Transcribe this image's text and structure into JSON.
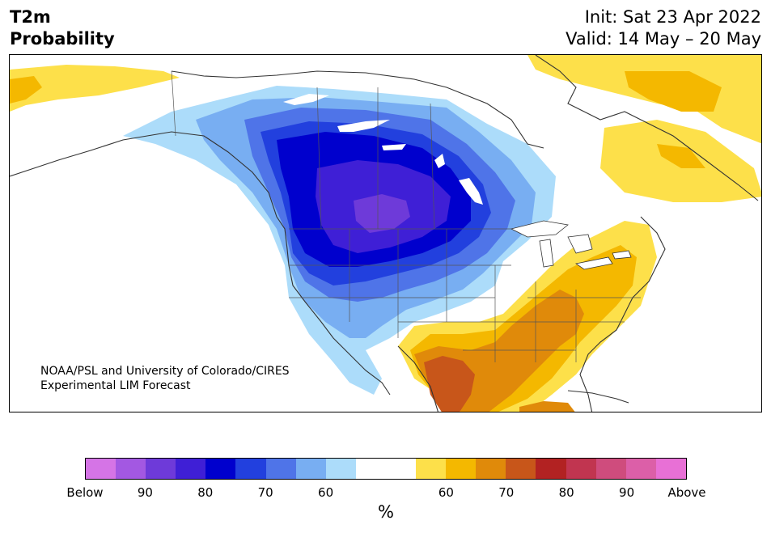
{
  "title": {
    "line1": "T2m",
    "line2": "Probability"
  },
  "forecast": {
    "init": "Init: Sat 23 Apr 2022",
    "valid": "Valid: 14 May – 20 May"
  },
  "credit": {
    "line1": "NOAA/PSL and University of Colorado/CIRES",
    "line2": "Experimental LIM Forecast"
  },
  "colorbar": {
    "title": "%",
    "colors": [
      "#d574e6",
      "#a358e2",
      "#6e3ad9",
      "#3f1fd6",
      "#0000cd",
      "#2240de",
      "#4f74e8",
      "#78aef2",
      "#acdcfa",
      "#ffffff",
      "#ffffff",
      "#fde04a",
      "#f4b800",
      "#e08a0a",
      "#c8561a",
      "#b22222",
      "#c13550",
      "#cf4c7d",
      "#dc5fa8",
      "#e870d6"
    ],
    "labels": [
      "Below",
      "90",
      "80",
      "70",
      "60",
      "60",
      "70",
      "80",
      "90",
      "Above"
    ]
  },
  "map_layers": {
    "below_60": "#acdcfa",
    "below_65": "#78aef2",
    "below_70": "#4f74e8",
    "below_75": "#2240de",
    "below_80": "#0000cd",
    "below_85": "#3f1fd6",
    "below_90": "#6e3ad9",
    "above_60": "#fde04a",
    "above_65": "#f4b800",
    "above_70": "#e08a0a",
    "above_75": "#c8561a"
  }
}
